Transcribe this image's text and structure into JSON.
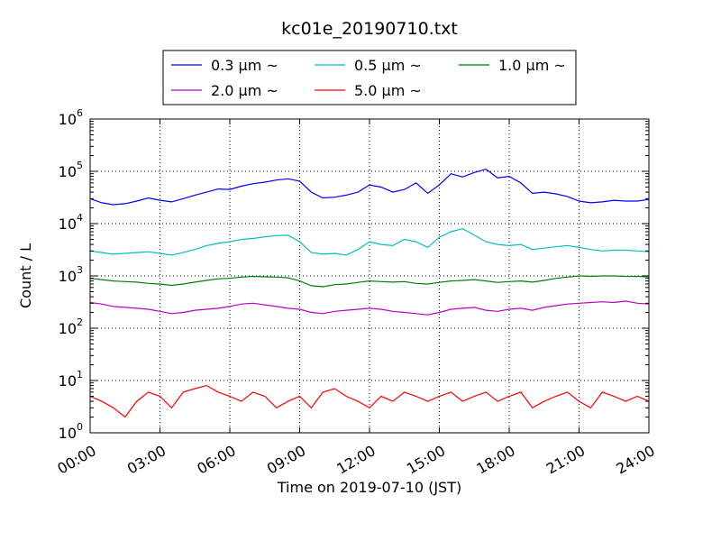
{
  "chart_data": {
    "type": "line",
    "title": "kc01e_20190710.txt",
    "xlabel": "Time on 2019-07-10 (JST)",
    "ylabel": "Count / L",
    "yscale": "log",
    "ylim": [
      1,
      1000000
    ],
    "xlim": [
      0,
      24
    ],
    "grid": true,
    "legend_position": "top",
    "xtick_labels": [
      "00:00",
      "03:00",
      "06:00",
      "09:00",
      "12:00",
      "15:00",
      "18:00",
      "21:00",
      "24:00"
    ],
    "ytick_labels": [
      {
        "base": "10",
        "exp": "0"
      },
      {
        "base": "10",
        "exp": "1"
      },
      {
        "base": "10",
        "exp": "2"
      },
      {
        "base": "10",
        "exp": "3"
      },
      {
        "base": "10",
        "exp": "4"
      },
      {
        "base": "10",
        "exp": "5"
      },
      {
        "base": "10",
        "exp": "6"
      }
    ],
    "x": [
      0.0,
      0.5,
      1.0,
      1.5,
      2.0,
      2.5,
      3.0,
      3.5,
      4.0,
      4.5,
      5.0,
      5.5,
      6.0,
      6.5,
      7.0,
      7.5,
      8.0,
      8.5,
      9.0,
      9.5,
      10.0,
      10.5,
      11.0,
      11.5,
      12.0,
      12.5,
      13.0,
      13.5,
      14.0,
      14.5,
      15.0,
      15.5,
      16.0,
      16.5,
      17.0,
      17.5,
      18.0,
      18.5,
      19.0,
      19.5,
      20.0,
      20.5,
      21.0,
      21.5,
      22.0,
      22.5,
      23.0,
      23.5,
      24.0
    ],
    "series": [
      {
        "name": "0.3 μm ~",
        "color": "#0000ff",
        "values": [
          30000,
          25000,
          23000,
          24000,
          27000,
          31000,
          28000,
          26000,
          30000,
          35000,
          40000,
          46000,
          45000,
          52000,
          58000,
          62000,
          68000,
          72000,
          65000,
          40000,
          31000,
          32000,
          35000,
          40000,
          55000,
          50000,
          40000,
          45000,
          60000,
          38000,
          55000,
          90000,
          78000,
          95000,
          110000,
          75000,
          80000,
          60000,
          38000,
          40000,
          37000,
          33000,
          27000,
          25000,
          26000,
          28000,
          27000,
          27000,
          29000
        ]
      },
      {
        "name": "0.5 μm ~",
        "color": "#00bfbf",
        "values": [
          3000,
          2800,
          2600,
          2700,
          2800,
          2900,
          2700,
          2500,
          2800,
          3200,
          3800,
          4200,
          4500,
          5000,
          5200,
          5600,
          5900,
          6000,
          4500,
          2800,
          2600,
          2700,
          2500,
          3200,
          4500,
          4000,
          3800,
          5000,
          4500,
          3500,
          5500,
          7000,
          8000,
          6000,
          4500,
          4000,
          3800,
          4000,
          3200,
          3400,
          3600,
          3800,
          3500,
          3200,
          3000,
          3100,
          3100,
          3000,
          2900
        ]
      },
      {
        "name": "1.0 μm ~",
        "color": "#008000",
        "values": [
          900,
          850,
          800,
          780,
          760,
          720,
          700,
          660,
          700,
          760,
          820,
          880,
          900,
          950,
          980,
          960,
          950,
          920,
          800,
          650,
          620,
          680,
          700,
          750,
          800,
          780,
          760,
          780,
          720,
          700,
          750,
          800,
          820,
          850,
          800,
          750,
          780,
          800,
          760,
          820,
          900,
          950,
          1000,
          980,
          1000,
          1000,
          980,
          980,
          960
        ]
      },
      {
        "name": "2.0 μm ~",
        "color": "#bf00bf",
        "values": [
          310,
          290,
          260,
          250,
          240,
          230,
          210,
          190,
          200,
          220,
          230,
          240,
          260,
          290,
          300,
          280,
          260,
          240,
          230,
          200,
          190,
          210,
          220,
          230,
          240,
          230,
          210,
          200,
          190,
          180,
          200,
          230,
          240,
          250,
          220,
          210,
          230,
          240,
          220,
          250,
          270,
          290,
          300,
          310,
          320,
          310,
          330,
          300,
          290
        ]
      },
      {
        "name": "5.0 μm ~",
        "color": "#ff0000",
        "values": [
          5,
          4,
          3,
          2,
          4,
          6,
          5,
          3,
          6,
          7,
          8,
          6,
          5,
          4,
          6,
          5,
          3,
          4,
          5,
          3,
          6,
          7,
          5,
          4,
          3,
          5,
          4,
          6,
          5,
          4,
          5,
          6,
          4,
          5,
          6,
          4,
          5,
          6,
          3,
          4,
          5,
          6,
          4,
          3,
          6,
          5,
          4,
          5,
          4
        ]
      }
    ]
  }
}
